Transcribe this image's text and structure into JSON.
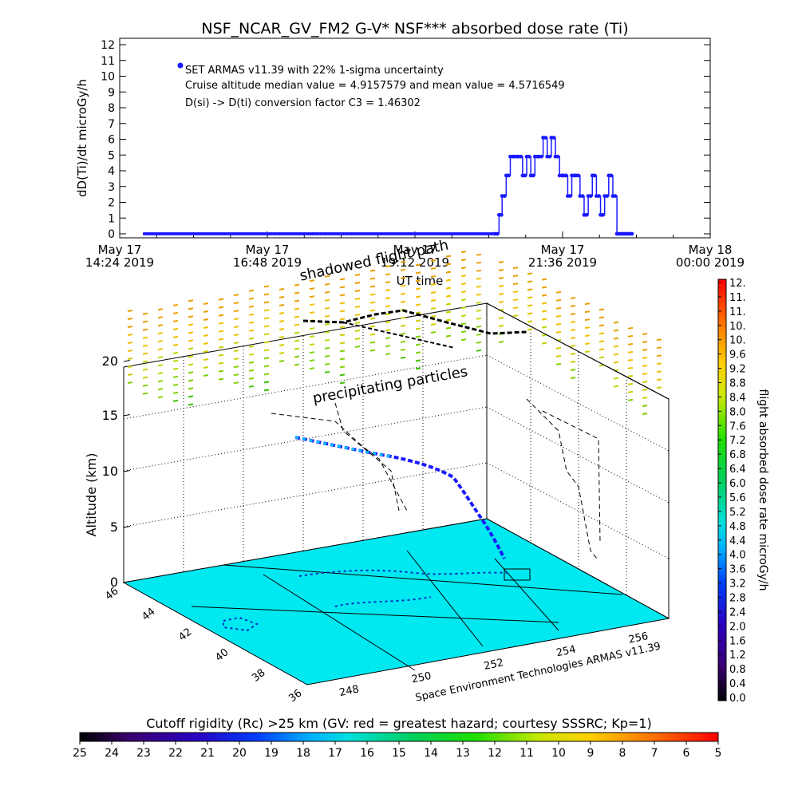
{
  "title": "NSF_NCAR_GV_FM2 G-V* NSF*** absorbed dose rate (Ti)",
  "chart_data": [
    {
      "type": "line",
      "panel": "time series",
      "ylabel": "dD(Ti)/dt microGy/h",
      "xlabel": "UT time",
      "ylim": [
        0,
        12
      ],
      "yticks": [
        "0",
        "1",
        "2",
        "3",
        "4",
        "5",
        "6",
        "7",
        "8",
        "9",
        "10",
        "11",
        "12"
      ],
      "xticks": [
        {
          "l1": "May 17",
          "l2": "14:24 2019"
        },
        {
          "l1": "May 17",
          "l2": "16:48 2019"
        },
        {
          "l1": "May 17",
          "l2": "19:12 2019"
        },
        {
          "l1": "May 17",
          "l2": "21:36 2019"
        },
        {
          "l1": "May 18",
          "l2": "00:00 2019"
        }
      ],
      "legend": "SET ARMAS v11.39 with 22% 1-sigma uncertainty",
      "annotations": [
        "Cruise altitude median value = 4.9157579 and mean value = 4.5716549",
        "D(si) -> D(ti) conversion factor C3 = 1.46302"
      ],
      "series_color": "#1a1aff",
      "x_minutes_from_1424": [
        24,
        30,
        60,
        90,
        120,
        150,
        180,
        210,
        240,
        270,
        300,
        330,
        366,
        370,
        373,
        377,
        381,
        385,
        389,
        393,
        397,
        401,
        405,
        409,
        413,
        417,
        421,
        425,
        429,
        433,
        437,
        441,
        445,
        449,
        453,
        457,
        461,
        465,
        469,
        473,
        477,
        481,
        485,
        490,
        495
      ],
      "x": [
        "14:48",
        "14:54",
        "15:24",
        "15:54",
        "16:24",
        "16:54",
        "17:24",
        "17:54",
        "18:24",
        "18:54",
        "19:24",
        "19:54",
        "20:30",
        "20:34",
        "20:37",
        "20:41",
        "20:45",
        "20:49",
        "20:53",
        "20:57",
        "21:01",
        "21:05",
        "21:09",
        "21:13",
        "21:17",
        "21:21",
        "21:25",
        "21:29",
        "21:33",
        "21:37",
        "21:41",
        "21:45",
        "21:49",
        "21:53",
        "21:57",
        "22:01",
        "22:05",
        "22:09",
        "22:13",
        "22:17",
        "22:21",
        "22:25",
        "22:29",
        "22:34",
        "22:39"
      ],
      "values": [
        0,
        0,
        0,
        0,
        0,
        0,
        0,
        0,
        0,
        0,
        0,
        0,
        0,
        1.2,
        2.4,
        3.7,
        4.9,
        4.9,
        4.9,
        3.7,
        4.9,
        3.7,
        4.9,
        4.9,
        6.1,
        4.9,
        6.1,
        4.9,
        3.7,
        3.7,
        2.4,
        3.7,
        3.7,
        2.4,
        1.2,
        2.4,
        3.7,
        2.4,
        1.2,
        2.4,
        3.7,
        2.4,
        0,
        0,
        0
      ]
    },
    {
      "type": "scatter",
      "panel": "3D flight view",
      "zlabel": "Altitude (km)",
      "zticks": [
        "0",
        "5",
        "10",
        "15",
        "20"
      ],
      "lat_ticks": [
        "46",
        "44",
        "42",
        "40",
        "38",
        "36"
      ],
      "lon_ticks": [
        "248",
        "250",
        "252",
        "254",
        "256"
      ],
      "annotations": [
        "shadowed flight path",
        "precipitating particles"
      ],
      "credit": "Space Environment Technologies ARMAS v11.39"
    }
  ],
  "colorbar_right": {
    "label": "flight absorbed dose rate microGy/h",
    "ticks": [
      "0.0",
      "0.4",
      "0.8",
      "1.2",
      "1.6",
      "2.0",
      "2.4",
      "2.8",
      "3.2",
      "3.6",
      "4.0",
      "4.4",
      "4.8",
      "5.2",
      "5.6",
      "6.0",
      "6.4",
      "6.8",
      "7.2",
      "7.6",
      "8.0",
      "8.4",
      "8.8",
      "9.2",
      "9.6",
      "10.",
      "10.",
      "11.",
      "11.",
      "12."
    ]
  },
  "colorbar_bottom": {
    "label": "Cutoff rigidity (Rc) >25 km (GV: red = greatest hazard; courtesy SSSRC; Kp=1)",
    "ticks": [
      "25",
      "24",
      "23",
      "22",
      "21",
      "20",
      "19",
      "18",
      "17",
      "16",
      "15",
      "14",
      "13",
      "12",
      "11",
      "10",
      "9",
      "8",
      "7",
      "6",
      "5"
    ]
  }
}
